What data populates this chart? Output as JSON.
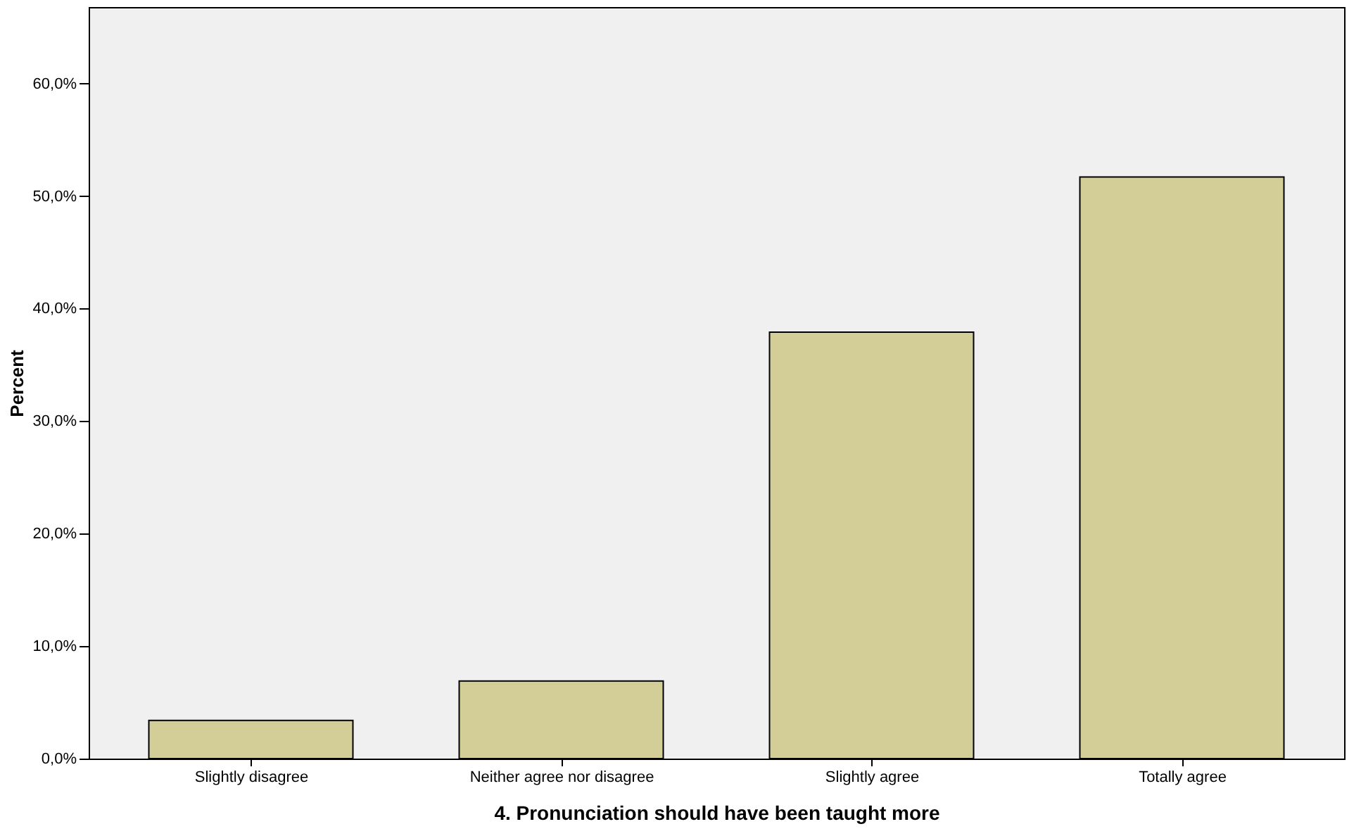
{
  "chart_data": {
    "type": "bar",
    "xlabel": "4. Pronunciation should have been taught more",
    "ylabel": "Percent",
    "categories": [
      "Slightly disagree",
      "Neither agree nor disagree",
      "Slightly agree",
      "Totally agree"
    ],
    "values": [
      3.4,
      6.9,
      37.9,
      51.7
    ],
    "color": "#d3ce97",
    "ylim": [
      0,
      66.8
    ],
    "yticks": [
      {
        "value": 0,
        "label": "0,0%"
      },
      {
        "value": 10,
        "label": "10,0%"
      },
      {
        "value": 20,
        "label": "20,0%"
      },
      {
        "value": 30,
        "label": "30,0%"
      },
      {
        "value": 40,
        "label": "40,0%"
      },
      {
        "value": 50,
        "label": "50,0%"
      },
      {
        "value": 60,
        "label": "60,0%"
      }
    ],
    "grid": false
  }
}
